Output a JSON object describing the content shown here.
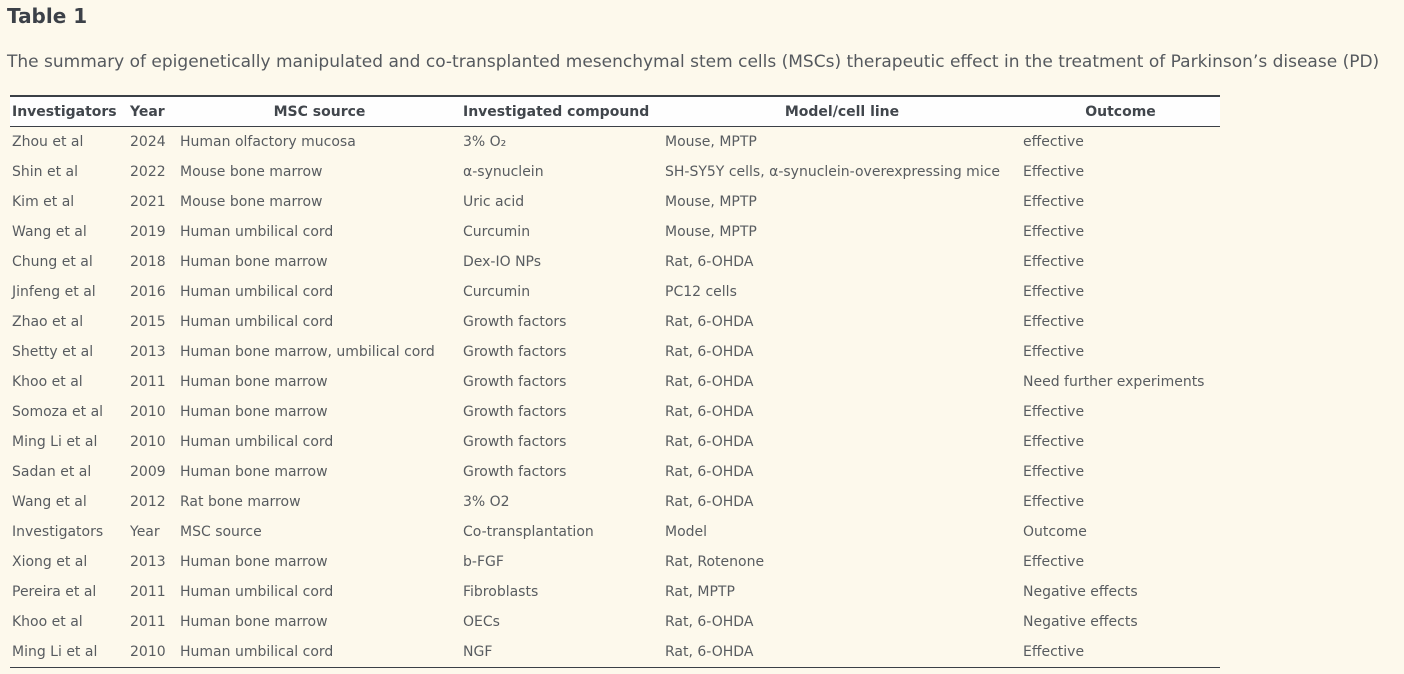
{
  "page": {
    "title": "Table 1",
    "caption": "The summary of epigenetically manipulated and co-transplanted mesenchymal stem cells (MSCs) therapeutic effect in the treatment of Parkinson’s disease (PD)"
  },
  "colors": {
    "page_background": "#fdf9ec",
    "header_row_background": "#fefefe",
    "border": "#3b4046",
    "title_text": "#3c4148",
    "body_text": "#585c60"
  },
  "table": {
    "columns": [
      {
        "label": "Investigators"
      },
      {
        "label": "Year"
      },
      {
        "label": "MSC source"
      },
      {
        "label": "Investigated compound"
      },
      {
        "label": "Model/cell line"
      },
      {
        "label": "Outcome"
      }
    ],
    "rows": [
      [
        "Zhou et al",
        "2024",
        "Human olfactory mucosa",
        "3% O₂",
        "Mouse, MPTP",
        "effective"
      ],
      [
        "Shin et al",
        "2022",
        "Mouse bone marrow",
        "α-synuclein",
        "SH-SY5Y cells, α-synuclein-overexpressing mice",
        "Effective"
      ],
      [
        "Kim et al",
        "2021",
        "Mouse bone marrow",
        "Uric acid",
        "Mouse, MPTP",
        "Effective"
      ],
      [
        "Wang et al",
        "2019",
        "Human umbilical cord",
        "Curcumin",
        "Mouse, MPTP",
        "Effective"
      ],
      [
        "Chung et al",
        "2018",
        "Human bone marrow",
        "Dex-IO NPs",
        "Rat, 6-OHDA",
        "Effective"
      ],
      [
        "Jinfeng et al",
        "2016",
        "Human umbilical cord",
        "Curcumin",
        "PC12 cells",
        "Effective"
      ],
      [
        "Zhao et al",
        "2015",
        "Human umbilical cord",
        "Growth factors",
        "Rat, 6-OHDA",
        "Effective"
      ],
      [
        "Shetty et al",
        "2013",
        "Human bone marrow, umbilical cord",
        "Growth factors",
        "Rat, 6-OHDA",
        "Effective"
      ],
      [
        "Khoo et al",
        "2011",
        "Human bone marrow",
        "Growth factors",
        "Rat, 6-OHDA",
        "Need further experiments"
      ],
      [
        "Somoza et al",
        "2010",
        "Human bone marrow",
        "Growth factors",
        "Rat, 6-OHDA",
        "Effective"
      ],
      [
        "Ming Li et al",
        "2010",
        "Human umbilical cord",
        "Growth factors",
        "Rat, 6-OHDA",
        "Effective"
      ],
      [
        "Sadan et al",
        "2009",
        "Human bone marrow",
        "Growth factors",
        "Rat, 6-OHDA",
        "Effective"
      ],
      [
        "Wang et al",
        "2012",
        "Rat bone marrow",
        "3% O2",
        "Rat, 6-OHDA",
        "Effective"
      ],
      [
        "Investigators",
        "Year",
        "MSC source",
        "Co-transplantation",
        "Model",
        "Outcome"
      ],
      [
        "Xiong et al",
        "2013",
        "Human bone marrow",
        "b-FGF",
        "Rat, Rotenone",
        "Effective"
      ],
      [
        "Pereira et al",
        "2011",
        "Human umbilical cord",
        "Fibroblasts",
        "Rat, MPTP",
        "Negative effects"
      ],
      [
        "Khoo et al",
        "2011",
        "Human bone marrow",
        "OECs",
        "Rat, 6-OHDA",
        "Negative effects"
      ],
      [
        "Ming Li et al",
        "2010",
        "Human umbilical cord",
        "NGF",
        "Rat, 6-OHDA",
        "Effective"
      ]
    ]
  }
}
